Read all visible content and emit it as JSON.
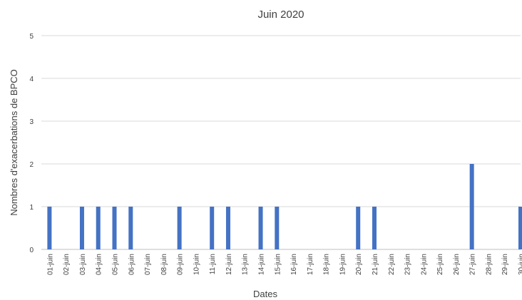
{
  "chart_data": {
    "type": "bar",
    "title": "Juin 2020",
    "xlabel": "Dates",
    "ylabel": "Nombres d'exacerbations de BPCO",
    "ylim": [
      0,
      5
    ],
    "yticks": [
      "0",
      "1",
      "2",
      "3",
      "4",
      "5"
    ],
    "grid": true,
    "bar_color": "#4472c4",
    "categories": [
      "01-juin",
      "02-juin",
      "03-juin",
      "04-juin",
      "05-juin",
      "06-juin",
      "07-juin",
      "08-juin",
      "09-juin",
      "10-juin",
      "11-juin",
      "12-juin",
      "13-juin",
      "14-juin",
      "15-juin",
      "16-juin",
      "17-juin",
      "18-juin",
      "19-juin",
      "20-juin",
      "21-juin",
      "22-juin",
      "23-juin",
      "24-juin",
      "25-juin",
      "26-juin",
      "27-juin",
      "28-juin",
      "29-juin",
      "30-juin"
    ],
    "values": [
      1,
      0,
      1,
      1,
      1,
      1,
      0,
      0,
      1,
      0,
      1,
      1,
      0,
      1,
      1,
      0,
      0,
      0,
      0,
      1,
      1,
      0,
      0,
      0,
      0,
      0,
      2,
      0,
      0,
      1
    ]
  }
}
